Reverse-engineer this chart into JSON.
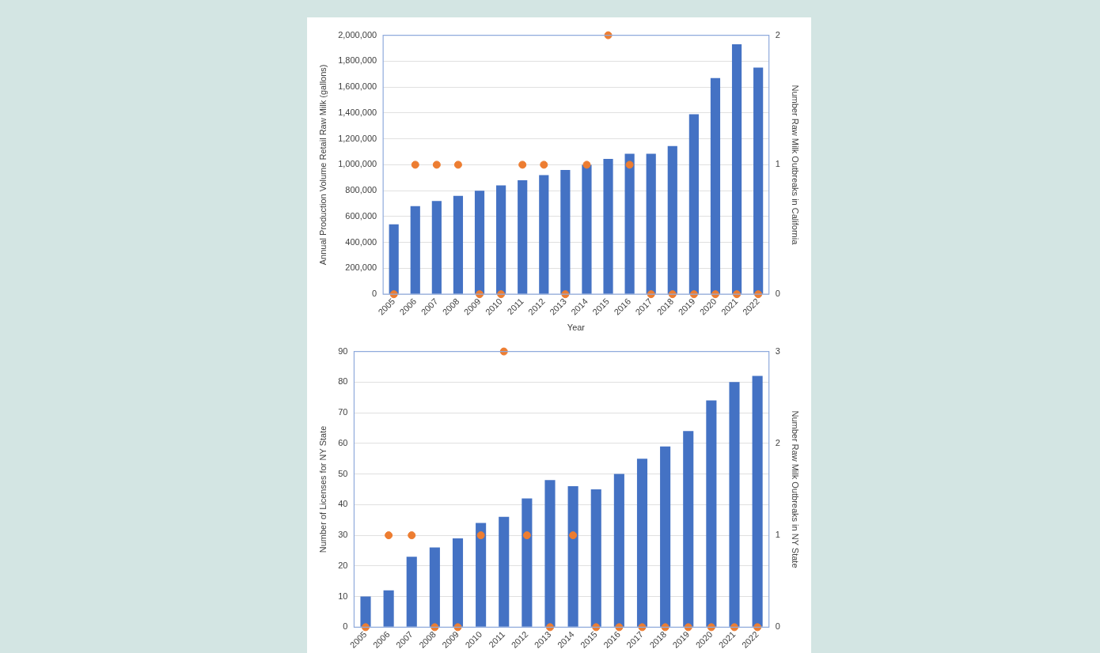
{
  "chart_data": [
    {
      "type": "bar",
      "xlabel": "Year",
      "ylabel": "Annual Production Volume Retail Raw Milk (gallons)",
      "y2label": "Number Raw Milk Outbreaks in California",
      "categories": [
        "2005",
        "2006",
        "2007",
        "2008",
        "2009",
        "2010",
        "2011",
        "2012",
        "2013",
        "2014",
        "2015",
        "2016",
        "2017",
        "2018",
        "2019",
        "2020",
        "2021",
        "2022"
      ],
      "series": [
        {
          "color": "#4472c4",
          "values": [
            540000,
            680000,
            720000,
            760000,
            800000,
            840000,
            880000,
            920000,
            960000,
            1000000,
            1045000,
            1085000,
            1085000,
            1145000,
            1390000,
            1670000,
            1930000,
            1750000
          ]
        },
        {
          "type": "scatter",
          "axis": "y2",
          "color": "#ed7d31",
          "values": [
            0,
            1,
            1,
            1,
            0,
            0,
            1,
            1,
            0,
            1,
            2,
            1,
            0,
            0,
            0,
            0,
            0,
            0
          ]
        }
      ],
      "ylim": [
        0,
        2000000
      ],
      "yticks": [
        {
          "value": 0,
          "label": "0"
        },
        {
          "value": 200000,
          "label": "200,000"
        },
        {
          "value": 400000,
          "label": "400,000"
        },
        {
          "value": 600000,
          "label": "600,000"
        },
        {
          "value": 800000,
          "label": "800,000"
        },
        {
          "value": 1000000,
          "label": "1,000,000"
        },
        {
          "value": 1200000,
          "label": "1,200,000"
        },
        {
          "value": 1400000,
          "label": "1,400,000"
        },
        {
          "value": 1600000,
          "label": "1,600,000"
        },
        {
          "value": 1800000,
          "label": "1,800,000"
        },
        {
          "value": 2000000,
          "label": "2,000,000"
        }
      ],
      "y2lim": [
        0,
        2
      ],
      "y2ticks": [
        0,
        1,
        2
      ],
      "grid": "y",
      "legend": false,
      "marker": "circle"
    },
    {
      "type": "bar",
      "ylabel": "Number of Licenses for NY State",
      "y2label": "Number Raw Milk Outbreaks in NY State",
      "categories": [
        "2005",
        "2006",
        "2007",
        "2008",
        "2009",
        "2010",
        "2011",
        "2012",
        "2013",
        "2014",
        "2015",
        "2016",
        "2017",
        "2018",
        "2019",
        "2020",
        "2021",
        "2022"
      ],
      "series": [
        {
          "color": "#4472c4",
          "values": [
            10,
            12,
            23,
            26,
            29,
            34,
            36,
            42,
            48,
            46,
            45,
            50,
            55,
            59,
            64,
            74,
            80,
            82
          ]
        },
        {
          "type": "scatter",
          "axis": "y2",
          "color": "#ed7d31",
          "values": [
            0,
            1,
            1,
            0,
            0,
            1,
            3,
            1,
            0,
            1,
            0,
            0,
            0,
            0,
            0,
            0,
            0,
            0
          ]
        }
      ],
      "ylim": [
        0,
        90
      ],
      "yticks": [
        0,
        10,
        20,
        30,
        40,
        50,
        60,
        70,
        80,
        90
      ],
      "y2lim": [
        0,
        3
      ],
      "y2ticks": [
        0,
        1,
        2,
        3
      ],
      "grid": "y",
      "legend": false,
      "marker": "circle"
    }
  ]
}
